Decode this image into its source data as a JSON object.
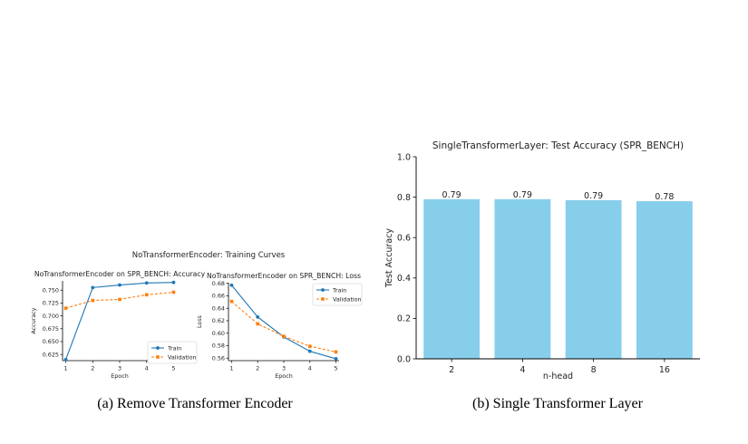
{
  "chart_data": [
    {
      "type": "line",
      "suptitle": "NoTransformerEncoder: Training Curves",
      "title": "NoTransformerEncoder on SPR_BENCH: Accuracy",
      "xlabel": "Epoch",
      "ylabel": "Accuracy",
      "x": [
        1,
        2,
        3,
        4,
        5
      ],
      "ylim": [
        0.613,
        0.768
      ],
      "yticks": [
        0.625,
        0.65,
        0.675,
        0.7,
        0.725,
        0.75
      ],
      "ytick_labels": [
        "0.625",
        "0.650",
        "0.675",
        "0.700",
        "0.725",
        "0.750"
      ],
      "grid": false,
      "legend": "lower-right",
      "series": [
        {
          "name": "Train",
          "color": "#1f77b4",
          "marker": "circle",
          "dash": "solid",
          "values": [
            0.615,
            0.755,
            0.76,
            0.764,
            0.765
          ]
        },
        {
          "name": "Validation",
          "color": "#ff7f0e",
          "marker": "square",
          "dash": "dashed",
          "values": [
            0.715,
            0.73,
            0.732,
            0.741,
            0.746
          ]
        }
      ]
    },
    {
      "type": "line",
      "title": "NoTransformerEncoder on SPR_BENCH: Loss",
      "xlabel": "Epoch",
      "ylabel": "Loss",
      "x": [
        1,
        2,
        3,
        4,
        5
      ],
      "ylim": [
        0.556,
        0.681
      ],
      "yticks": [
        0.56,
        0.58,
        0.6,
        0.62,
        0.64,
        0.66,
        0.68
      ],
      "ytick_labels": [
        "0.56",
        "0.58",
        "0.60",
        "0.62",
        "0.64",
        "0.66",
        "0.68"
      ],
      "grid": false,
      "legend": "upper-right",
      "series": [
        {
          "name": "Train",
          "color": "#1f77b4",
          "marker": "circle",
          "dash": "solid",
          "values": [
            0.677,
            0.626,
            0.594,
            0.571,
            0.559
          ]
        },
        {
          "name": "Validation",
          "color": "#ff7f0e",
          "marker": "square",
          "dash": "dashed",
          "values": [
            0.651,
            0.615,
            0.595,
            0.579,
            0.57
          ]
        }
      ]
    },
    {
      "type": "bar",
      "title": "SingleTransformerLayer: Test Accuracy (SPR_BENCH)",
      "xlabel": "n-head",
      "ylabel": "Test Accuracy",
      "categories": [
        "2",
        "4",
        "8",
        "16"
      ],
      "values": [
        0.79,
        0.79,
        0.785,
        0.78
      ],
      "value_labels": [
        "0.79",
        "0.79",
        "0.79",
        "0.78"
      ],
      "ylim": [
        0,
        1.0
      ],
      "yticks": [
        0.0,
        0.2,
        0.4,
        0.6,
        0.8,
        1.0
      ],
      "ytick_labels": [
        "0.0",
        "0.2",
        "0.4",
        "0.6",
        "0.8",
        "1.0"
      ],
      "bar_color": "#87ceeb",
      "grid": false
    }
  ],
  "captions": {
    "left": "(a)  Remove Transformer Encoder",
    "right": "(b)  Single Transformer Layer"
  }
}
